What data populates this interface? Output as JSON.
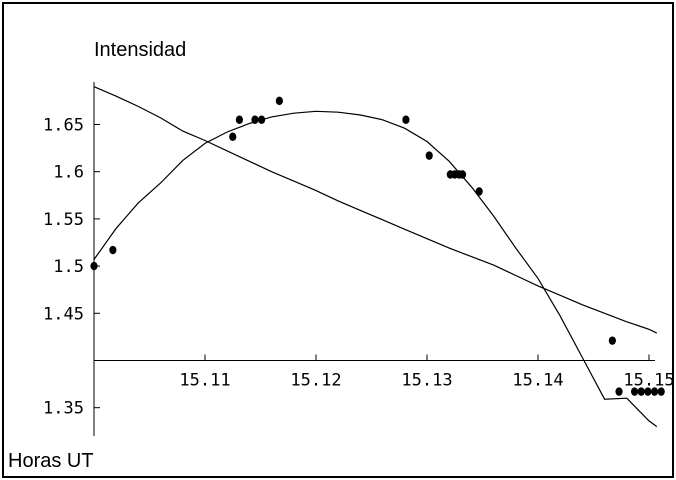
{
  "chart_data": {
    "type": "scatter",
    "title": "Intensidad",
    "xlabel": "Horas UT",
    "ylabel": "",
    "xlim": [
      15.1,
      15.15
    ],
    "ylim": [
      1.32,
      1.695
    ],
    "x_ticks": [
      "15.11",
      "15.12",
      "15.13",
      "15.14",
      "15.15"
    ],
    "x_tick_values": [
      15.11,
      15.12,
      15.13,
      15.14,
      15.15
    ],
    "y_ticks": [
      "1.35",
      "1.45",
      "1.5",
      "1.55",
      "1.6",
      "1.65"
    ],
    "y_tick_values": [
      1.35,
      1.45,
      1.5,
      1.55,
      1.6,
      1.65
    ],
    "x_axis_at_y": 1.4,
    "grid": false,
    "series": [
      {
        "kind": "points",
        "color": "#000000",
        "points": [
          [
            15.1,
            1.5
          ],
          [
            15.1017,
            1.517
          ],
          [
            15.1125,
            1.637
          ],
          [
            15.1131,
            1.655
          ],
          [
            15.1145,
            1.655
          ],
          [
            15.1151,
            1.655
          ],
          [
            15.1167,
            1.675
          ],
          [
            15.1281,
            1.655
          ],
          [
            15.1302,
            1.617
          ],
          [
            15.1321,
            1.597
          ],
          [
            15.1325,
            1.597
          ],
          [
            15.1329,
            1.597
          ],
          [
            15.1332,
            1.597
          ],
          [
            15.1347,
            1.579
          ],
          [
            15.1467,
            1.421
          ],
          [
            15.1473,
            1.367
          ],
          [
            15.1487,
            1.367
          ],
          [
            15.1493,
            1.367
          ],
          [
            15.1499,
            1.367
          ],
          [
            15.1505,
            1.367
          ],
          [
            15.1511,
            1.367
          ]
        ]
      },
      {
        "kind": "curve",
        "color": "#000000",
        "points": [
          [
            15.1,
            1.507
          ],
          [
            15.102,
            1.54
          ],
          [
            15.104,
            1.567
          ],
          [
            15.106,
            1.588
          ],
          [
            15.108,
            1.612
          ],
          [
            15.11,
            1.63
          ],
          [
            15.112,
            1.642
          ],
          [
            15.114,
            1.651
          ],
          [
            15.116,
            1.658
          ],
          [
            15.118,
            1.662
          ],
          [
            15.12,
            1.664
          ],
          [
            15.122,
            1.663
          ],
          [
            15.124,
            1.66
          ],
          [
            15.126,
            1.655
          ],
          [
            15.128,
            1.646
          ],
          [
            15.13,
            1.632
          ],
          [
            15.132,
            1.611
          ],
          [
            15.134,
            1.584
          ],
          [
            15.136,
            1.553
          ],
          [
            15.138,
            1.519
          ],
          [
            15.14,
            1.487
          ],
          [
            15.142,
            1.447
          ],
          [
            15.144,
            1.403
          ],
          [
            15.146,
            1.359
          ],
          [
            15.148,
            1.36
          ],
          [
            15.15,
            1.336
          ],
          [
            15.1507,
            1.33
          ]
        ]
      },
      {
        "kind": "curve",
        "color": "#000000",
        "points": [
          [
            15.1,
            1.69
          ],
          [
            15.102,
            1.68
          ],
          [
            15.104,
            1.669
          ],
          [
            15.106,
            1.657
          ],
          [
            15.108,
            1.643
          ],
          [
            15.11,
            1.633
          ],
          [
            15.112,
            1.622
          ],
          [
            15.114,
            1.611
          ],
          [
            15.116,
            1.6
          ],
          [
            15.118,
            1.59
          ],
          [
            15.12,
            1.58
          ],
          [
            15.122,
            1.569
          ],
          [
            15.124,
            1.559
          ],
          [
            15.126,
            1.549
          ],
          [
            15.128,
            1.539
          ],
          [
            15.13,
            1.529
          ],
          [
            15.132,
            1.519
          ],
          [
            15.134,
            1.51
          ],
          [
            15.136,
            1.501
          ],
          [
            15.138,
            1.49
          ],
          [
            15.14,
            1.479
          ],
          [
            15.142,
            1.469
          ],
          [
            15.144,
            1.459
          ],
          [
            15.146,
            1.45
          ],
          [
            15.148,
            1.441
          ],
          [
            15.15,
            1.433
          ],
          [
            15.1507,
            1.429
          ]
        ]
      }
    ]
  }
}
